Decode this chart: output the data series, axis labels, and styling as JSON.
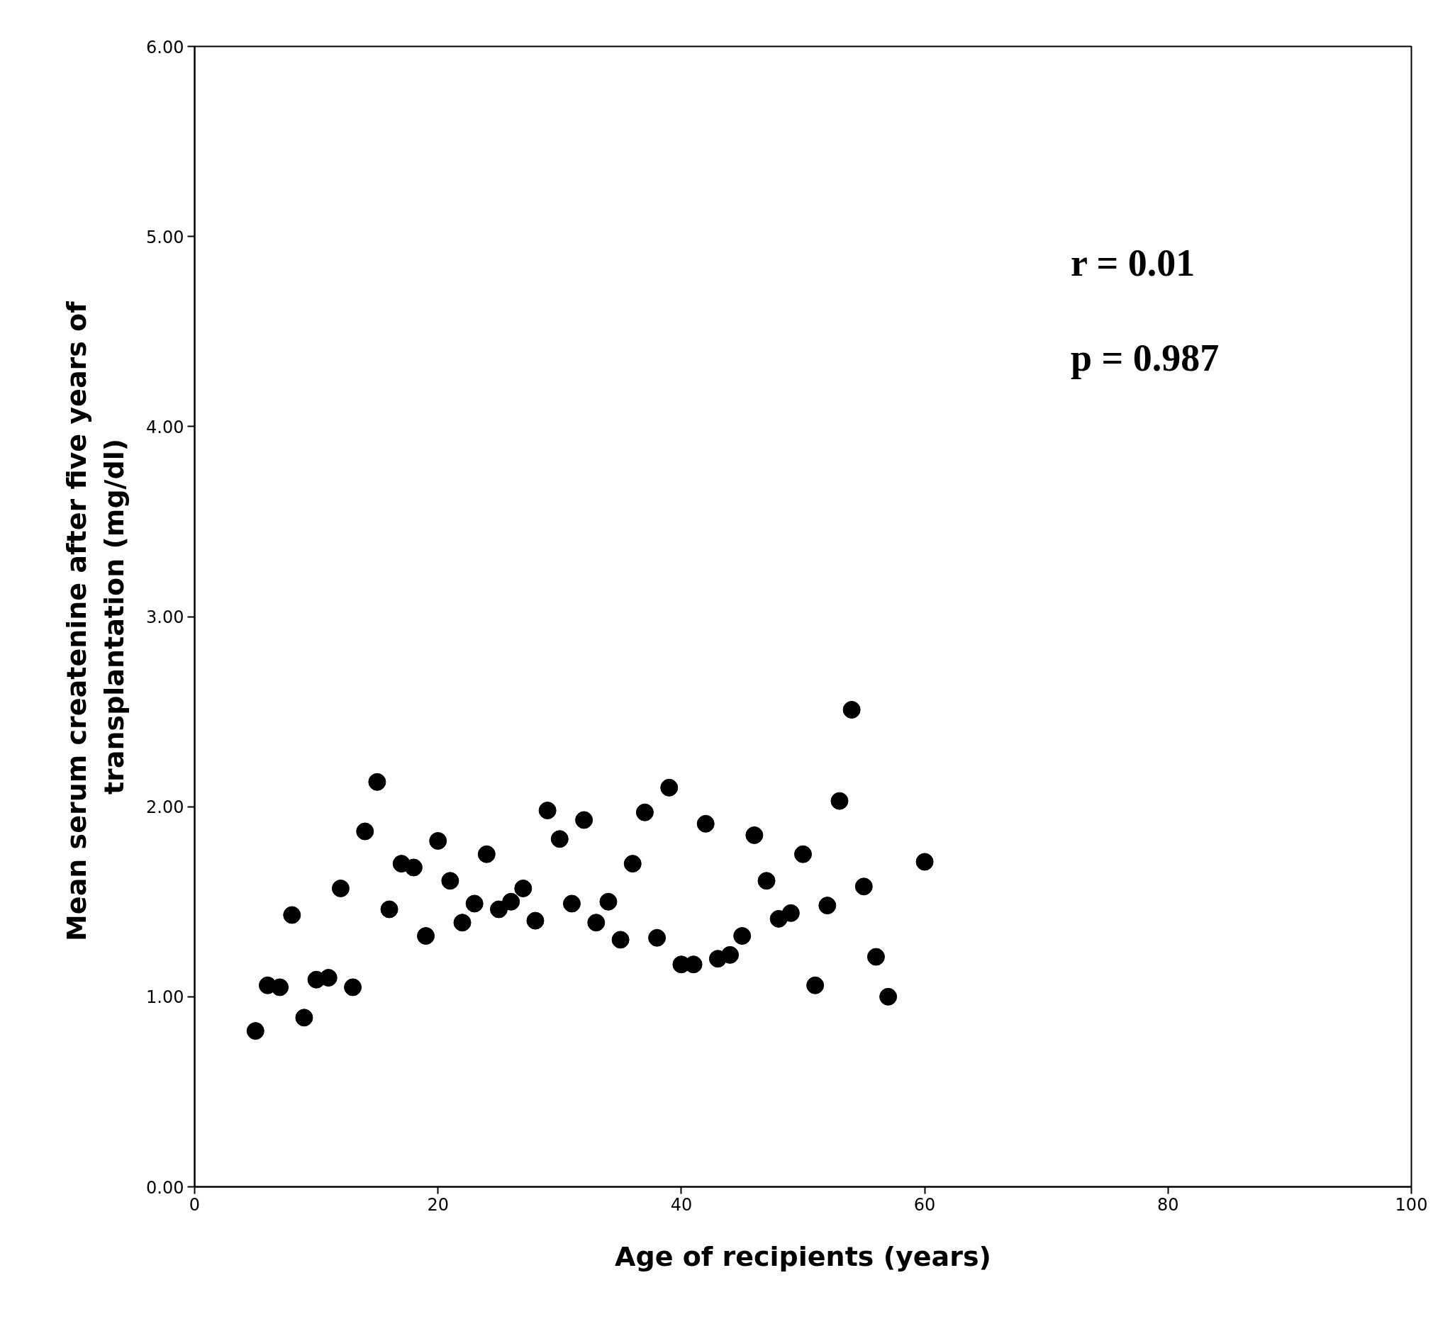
{
  "chart_data": {
    "type": "scatter",
    "xlabel": "Age of recipients (years)",
    "ylabel": "Mean  serum createnine after five years of\ntransplantation (mg/dl)",
    "annotations": [
      "r = 0.01",
      "p = 0.987"
    ],
    "x": [
      5,
      6,
      7,
      8,
      9,
      10,
      11,
      12,
      13,
      14,
      15,
      16,
      17,
      18,
      19,
      20,
      21,
      22,
      23,
      24,
      25,
      26,
      27,
      28,
      29,
      30,
      31,
      32,
      33,
      34,
      35,
      36,
      37,
      38,
      39,
      40,
      41,
      42,
      43,
      44,
      45,
      46,
      47,
      48,
      49,
      50,
      51,
      52,
      53,
      54,
      55,
      56,
      57,
      60
    ],
    "series": [
      {
        "color": "#000000",
        "values": [
          0.82,
          1.06,
          1.05,
          1.43,
          0.89,
          1.09,
          1.1,
          1.57,
          1.05,
          1.87,
          2.13,
          1.46,
          1.7,
          1.68,
          1.32,
          1.82,
          1.61,
          1.39,
          1.49,
          1.75,
          1.46,
          1.5,
          1.57,
          1.4,
          1.98,
          1.83,
          1.49,
          1.93,
          1.39,
          1.5,
          1.3,
          1.7,
          1.97,
          1.31,
          2.1,
          1.17,
          1.17,
          1.91,
          1.2,
          1.22,
          1.32,
          1.85,
          1.61,
          1.41,
          1.44,
          1.75,
          1.06,
          1.48,
          2.03,
          2.51,
          1.58,
          1.21,
          1.0,
          1.71
        ]
      }
    ],
    "xlim": [
      0,
      100
    ],
    "ylim": [
      0,
      6
    ],
    "xticks": [
      0,
      20,
      40,
      60,
      80,
      100
    ],
    "yticks": [
      {
        "value": 0,
        "label": "0.00"
      },
      {
        "value": 1,
        "label": "1.00"
      },
      {
        "value": 2,
        "label": "2.00"
      },
      {
        "value": 3,
        "label": "3.00"
      },
      {
        "value": 4,
        "label": "4.00"
      },
      {
        "value": 5,
        "label": "5.00"
      },
      {
        "value": 6,
        "label": "6.00"
      }
    ],
    "grid": false,
    "marker": "circle"
  }
}
